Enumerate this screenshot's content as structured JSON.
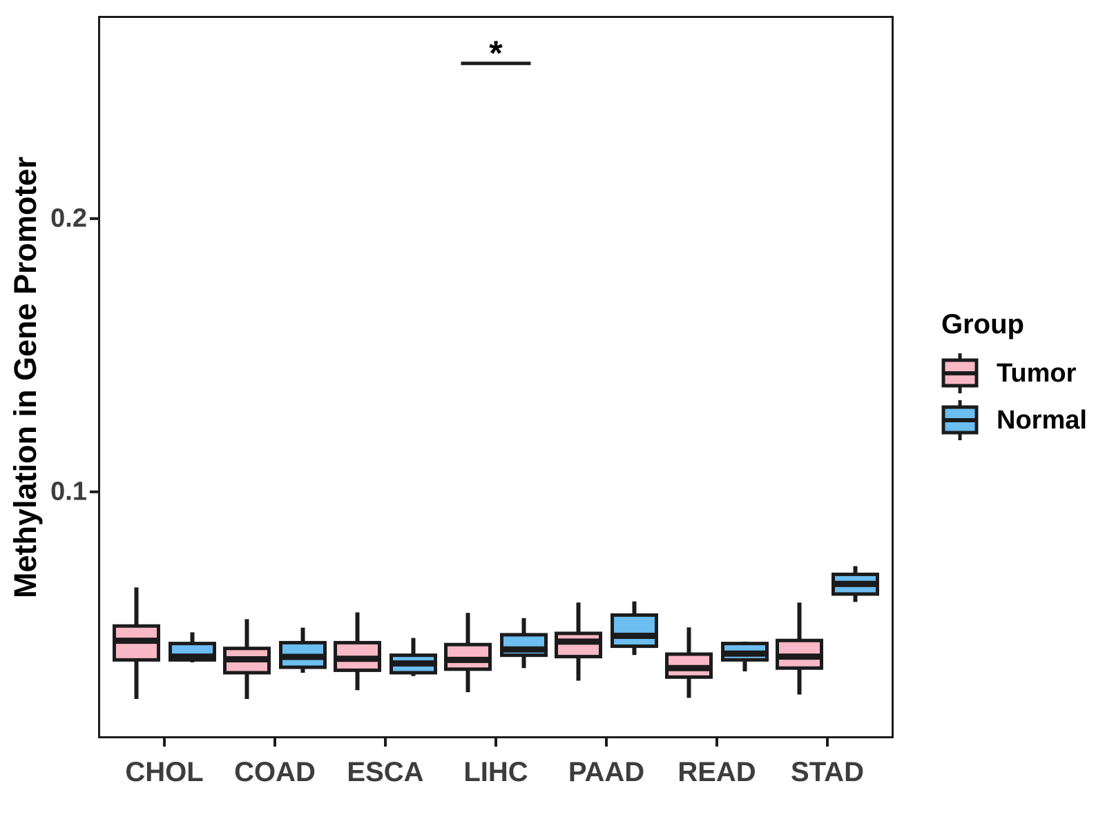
{
  "colors": {
    "tumor_fill": "#F9B8C5",
    "normal_fill": "#6CBDF0",
    "line": "#1B1B1B",
    "axis_text": "#3D3D3D",
    "background": "#FFFFFF"
  },
  "legend": {
    "title": "Group",
    "items": [
      {
        "label": "Tumor",
        "color": "#F9B8C5"
      },
      {
        "label": "Normal",
        "color": "#6CBDF0"
      }
    ]
  },
  "chart_data": {
    "type": "boxplot",
    "title": "",
    "xlabel": "",
    "ylabel": "Methylation in Gene Promoter",
    "categories": [
      "CHOL",
      "COAD",
      "ESCA",
      "LIHC",
      "PAAD",
      "READ",
      "STAD"
    ],
    "y_ticks": [
      {
        "label": "0.1",
        "value": 0.1
      },
      {
        "label": "0.2",
        "value": 0.2
      }
    ],
    "ylim": [
      0.0098,
      0.2742
    ],
    "grid": false,
    "legend_position": "right",
    "legend": {
      "title": "Group",
      "items": [
        {
          "label": "Tumor",
          "color": "#F9B8C5"
        },
        {
          "label": "Normal",
          "color": "#6CBDF0"
        }
      ]
    },
    "series": [
      {
        "name": "Tumor",
        "color": "#F9B8C5",
        "boxes": [
          {
            "category": "CHOL",
            "whisker_low": 0.0242,
            "q1": 0.0385,
            "median": 0.0455,
            "q3": 0.0509,
            "whisker_high": 0.065
          },
          {
            "category": "COAD",
            "whisker_low": 0.0242,
            "q1": 0.0338,
            "median": 0.0387,
            "q3": 0.0427,
            "whisker_high": 0.0534
          },
          {
            "category": "ESCA",
            "whisker_low": 0.0274,
            "q1": 0.0347,
            "median": 0.0389,
            "q3": 0.0448,
            "whisker_high": 0.0559
          },
          {
            "category": "LIHC",
            "whisker_low": 0.0267,
            "q1": 0.0351,
            "median": 0.0385,
            "q3": 0.0441,
            "whisker_high": 0.0557
          },
          {
            "category": "PAAD",
            "whisker_low": 0.0309,
            "q1": 0.0397,
            "median": 0.0452,
            "q3": 0.0482,
            "whisker_high": 0.0595
          },
          {
            "category": "READ",
            "whisker_low": 0.0246,
            "q1": 0.0322,
            "median": 0.0355,
            "q3": 0.0406,
            "whisker_high": 0.0504
          },
          {
            "category": "STAD",
            "whisker_low": 0.0258,
            "q1": 0.0355,
            "median": 0.0397,
            "q3": 0.0456,
            "whisker_high": 0.0595
          }
        ]
      },
      {
        "name": "Normal",
        "color": "#6CBDF0",
        "boxes": [
          {
            "category": "CHOL",
            "whisker_low": 0.0376,
            "q1": 0.0385,
            "median": 0.0397,
            "q3": 0.0445,
            "whisker_high": 0.0486
          },
          {
            "category": "COAD",
            "whisker_low": 0.0338,
            "q1": 0.0358,
            "median": 0.0396,
            "q3": 0.0448,
            "whisker_high": 0.0503
          },
          {
            "category": "ESCA",
            "whisker_low": 0.0326,
            "q1": 0.0338,
            "median": 0.0372,
            "q3": 0.0402,
            "whisker_high": 0.0465
          },
          {
            "category": "LIHC",
            "whisker_low": 0.0355,
            "q1": 0.0402,
            "median": 0.0423,
            "q3": 0.0477,
            "whisker_high": 0.0538
          },
          {
            "category": "PAAD",
            "whisker_low": 0.0403,
            "q1": 0.0435,
            "median": 0.0473,
            "q3": 0.0549,
            "whisker_high": 0.0599
          },
          {
            "category": "READ",
            "whisker_low": 0.0343,
            "q1": 0.0385,
            "median": 0.0408,
            "q3": 0.0445,
            "whisker_high": 0.0452
          },
          {
            "category": "STAD",
            "whisker_low": 0.0597,
            "q1": 0.0626,
            "median": 0.0663,
            "q3": 0.0698,
            "whisker_high": 0.0728
          }
        ]
      }
    ],
    "significance": {
      "symbol": "*",
      "category": "LIHC",
      "bar_value": 0.2568,
      "symbol_value": 0.2624
    }
  }
}
